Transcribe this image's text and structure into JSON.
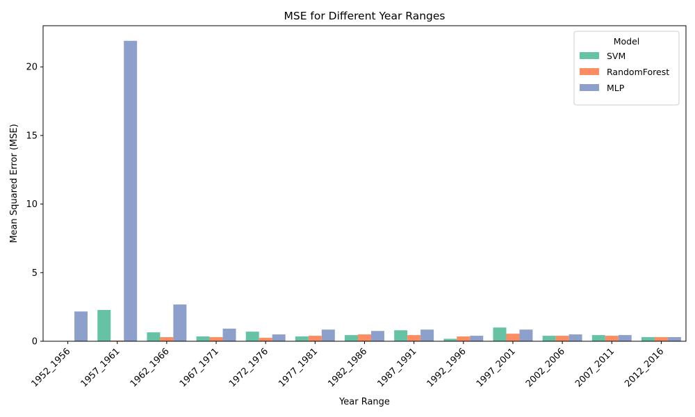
{
  "chart_data": {
    "type": "bar",
    "title": "MSE for Different Year Ranges",
    "xlabel": "Year Range",
    "ylabel": "Mean Squared Error (MSE)",
    "ylim": [
      0,
      23
    ],
    "yticks": [
      0,
      5,
      10,
      15,
      20
    ],
    "grid": false,
    "legend": {
      "title": "Model",
      "placement": "top-right"
    },
    "categories": [
      "1952_1956",
      "1957_1961",
      "1962_1966",
      "1967_1971",
      "1972_1976",
      "1977_1981",
      "1982_1986",
      "1987_1991",
      "1992_1996",
      "1997_2001",
      "2002_2006",
      "2007_2011",
      "2012_2016"
    ],
    "series": [
      {
        "name": "SVM",
        "color": "#66c2a5",
        "values": [
          0.0,
          2.28,
          0.65,
          0.35,
          0.7,
          0.35,
          0.45,
          0.8,
          0.18,
          1.0,
          0.4,
          0.45,
          0.3
        ]
      },
      {
        "name": "RandomForest",
        "color": "#fc8d62",
        "values": [
          0.0,
          0.05,
          0.3,
          0.3,
          0.25,
          0.4,
          0.5,
          0.45,
          0.35,
          0.55,
          0.4,
          0.4,
          0.3
        ]
      },
      {
        "name": "MLP",
        "color": "#8da0cb",
        "values": [
          2.17,
          21.9,
          2.68,
          0.92,
          0.5,
          0.85,
          0.75,
          0.85,
          0.4,
          0.85,
          0.5,
          0.45,
          0.3
        ]
      }
    ]
  }
}
